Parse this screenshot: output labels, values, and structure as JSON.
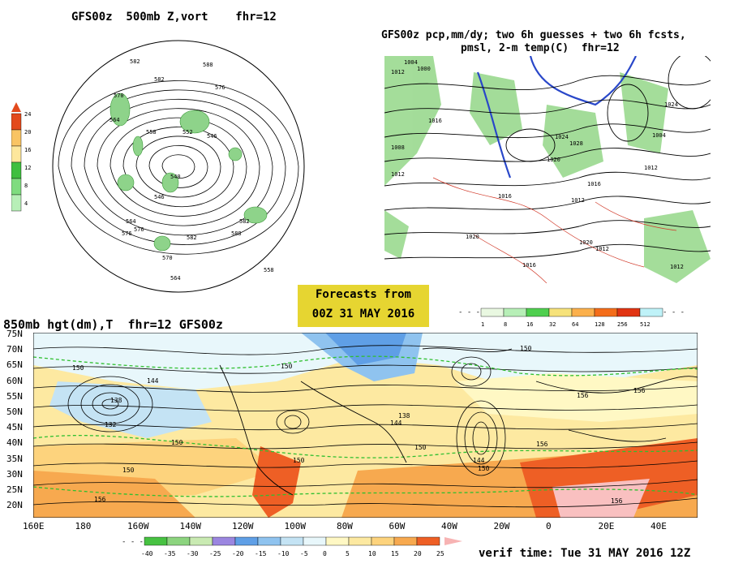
{
  "top_left": {
    "title": "GFS00z  500mb Z,vort    fhr=12",
    "scale_labels": [
      "24",
      "20",
      "16",
      "12",
      "8",
      "4"
    ],
    "scale_colors": [
      "#e34a1c",
      "#f9c464",
      "#fde79c",
      "#3fbf3f",
      "#7fdc7f",
      "#b7efb7"
    ],
    "contour_labels": [
      "582",
      "588",
      "582",
      "576",
      "570",
      "564",
      "558",
      "552",
      "546",
      "540",
      "546",
      "564",
      "576",
      "582",
      "588",
      "582",
      "576",
      "570",
      "564",
      "558"
    ]
  },
  "top_right": {
    "title_line1": "GFS00z pcp,mm/dy; two 6h guesses + two 6h fcsts,",
    "title_line2": "pmsl, 2-m temp(C)  fhr=12",
    "scale_labels": [
      "1",
      "8",
      "16",
      "32",
      "64",
      "128",
      "256",
      "512"
    ],
    "scale_colors": [
      "#e9f8e1",
      "#b7efb7",
      "#4fcf4f",
      "#f6e27a",
      "#fbb04c",
      "#f46d1a",
      "#e13413",
      "#bff2f8"
    ],
    "contour_labels": [
      "1004",
      "1000",
      "1012",
      "1016",
      "1024",
      "1028",
      "1020",
      "1016",
      "1012",
      "1008",
      "1012",
      "1016",
      "1020",
      "1012",
      "1004",
      "1012",
      "1024",
      "1020",
      "1016",
      "1012"
    ]
  },
  "banner": {
    "line1": "Forecasts from",
    "line2": "00Z 31 MAY 2016"
  },
  "bottom": {
    "title": "850mb hgt(dm),T  fhr=12 GFS00z",
    "lat_labels": [
      "75N",
      "70N",
      "65N",
      "60N",
      "55N",
      "50N",
      "45N",
      "40N",
      "35N",
      "30N",
      "25N",
      "20N"
    ],
    "lon_labels": [
      "160E",
      "180",
      "160W",
      "140W",
      "120W",
      "100W",
      "80W",
      "60W",
      "40W",
      "20W",
      "0",
      "20E",
      "40E"
    ],
    "contour_labels": [
      "150",
      "144",
      "138",
      "132",
      "150",
      "156",
      "150",
      "150",
      "150",
      "144",
      "138",
      "150",
      "144",
      "150",
      "156",
      "156",
      "156",
      "150",
      "156"
    ],
    "scale_labels": [
      "-40",
      "-35",
      "-30",
      "-25",
      "-20",
      "-15",
      "-10",
      "-5",
      "0",
      "5",
      "10",
      "15",
      "20",
      "25"
    ],
    "scale_colors": [
      "#47c242",
      "#8cd47f",
      "#c9eab2",
      "#9b86e0",
      "#5f9fe6",
      "#8fc3ef",
      "#c4e3f4",
      "#e8f7fb",
      "#fff8c4",
      "#fde9a1",
      "#fdd37d",
      "#f7a94f",
      "#ee5f25"
    ],
    "verif_time": "verif time: Tue 31 MAY 2016 12Z"
  }
}
